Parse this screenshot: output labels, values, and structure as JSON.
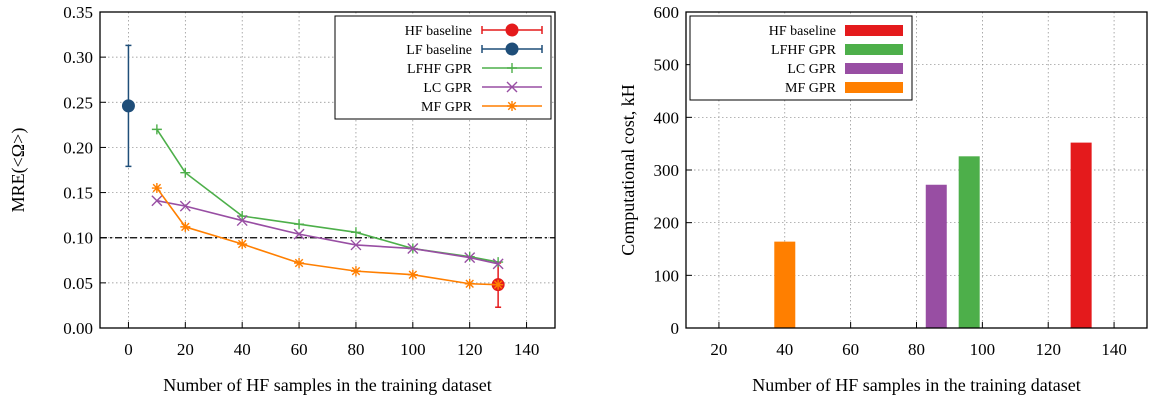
{
  "chart_data": [
    {
      "type": "line",
      "xlabel": "Number of HF samples in the training dataset",
      "ylabel": "MRE(<Ω>)",
      "xlim": [
        -10,
        150
      ],
      "ylim": [
        0,
        0.35
      ],
      "xticks": [
        "0",
        "20",
        "40",
        "60",
        "80",
        "100",
        "120",
        "140"
      ],
      "xtick_values": [
        0,
        20,
        40,
        60,
        80,
        100,
        120,
        140
      ],
      "yticks": [
        "0.00",
        "0.05",
        "0.10",
        "0.15",
        "0.20",
        "0.25",
        "0.30",
        "0.35"
      ],
      "ytick_values": [
        0,
        0.05,
        0.1,
        0.15,
        0.2,
        0.25,
        0.3,
        0.35
      ],
      "grid": true,
      "legend_position": "top-right",
      "reference_line": {
        "y": 0.1,
        "style": "dash-dot",
        "color": "#000000"
      },
      "series": [
        {
          "name": "HF baseline",
          "type": "errorbar",
          "color": "#e41a1c",
          "marker": "circle",
          "x": [
            130
          ],
          "y": [
            0.048
          ],
          "err_low": [
            0.023
          ],
          "err_high": [
            0.072
          ]
        },
        {
          "name": "LF baseline",
          "type": "errorbar",
          "color": "#1f4e79",
          "marker": "circle",
          "x": [
            0
          ],
          "y": [
            0.246
          ],
          "err_low": [
            0.179
          ],
          "err_high": [
            0.313
          ]
        },
        {
          "name": "LFHF GPR",
          "type": "line",
          "color": "#4daf4a",
          "marker": "plus",
          "x": [
            10,
            20,
            40,
            60,
            80,
            100,
            120,
            130
          ],
          "y": [
            0.22,
            0.172,
            0.124,
            0.115,
            0.106,
            0.088,
            0.079,
            0.073
          ]
        },
        {
          "name": "LC GPR",
          "type": "line",
          "color": "#984ea3",
          "marker": "x",
          "x": [
            10,
            20,
            40,
            60,
            80,
            100,
            120,
            130
          ],
          "y": [
            0.141,
            0.135,
            0.119,
            0.104,
            0.092,
            0.088,
            0.078,
            0.071
          ]
        },
        {
          "name": "MF GPR",
          "type": "line",
          "color": "#ff7f00",
          "marker": "star",
          "x": [
            10,
            20,
            40,
            60,
            80,
            100,
            120,
            130
          ],
          "y": [
            0.155,
            0.112,
            0.093,
            0.072,
            0.063,
            0.059,
            0.049,
            0.048
          ]
        }
      ]
    },
    {
      "type": "bar",
      "xlabel": "Number of HF samples in the training dataset",
      "ylabel": "Computational cost, kH",
      "xlim": [
        10,
        150
      ],
      "ylim": [
        0,
        600
      ],
      "xticks": [
        "20",
        "40",
        "60",
        "80",
        "100",
        "120",
        "140"
      ],
      "xtick_values": [
        20,
        40,
        60,
        80,
        100,
        120,
        140
      ],
      "yticks": [
        "0",
        "100",
        "200",
        "300",
        "400",
        "500",
        "600"
      ],
      "ytick_values": [
        0,
        100,
        200,
        300,
        400,
        500,
        600
      ],
      "grid": true,
      "legend_position": "top-left",
      "series": [
        {
          "name": "HF baseline",
          "color": "#e41a1c",
          "x": 130,
          "value": 352
        },
        {
          "name": "LFHF GPR",
          "color": "#4daf4a",
          "x": 96,
          "value": 326
        },
        {
          "name": "LC GPR",
          "color": "#984ea3",
          "x": 86,
          "value": 272
        },
        {
          "name": "MF GPR",
          "color": "#ff7f00",
          "x": 40,
          "value": 164
        }
      ]
    }
  ]
}
